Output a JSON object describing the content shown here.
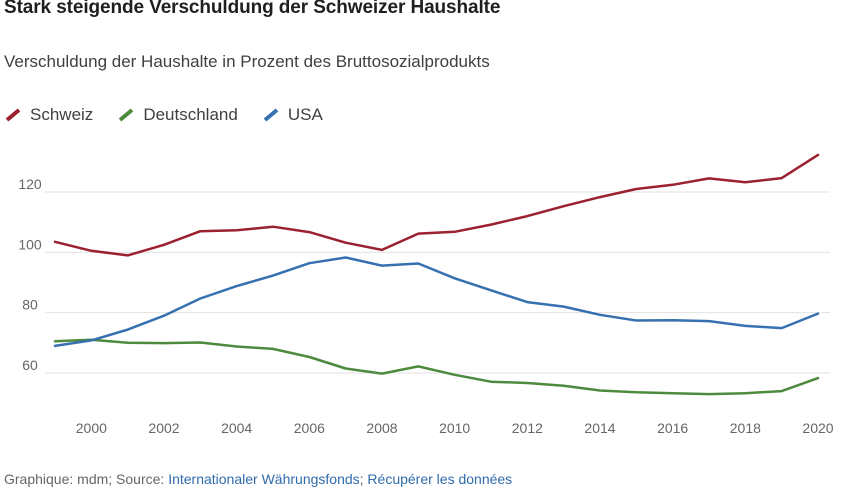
{
  "title": "Stark steigende Verschuldung der Schweizer Haushalte",
  "subtitle": "Verschuldung der Haushalte in Prozent des Bruttosozialprodukts",
  "footer": {
    "prefix": "Graphique: mdm; Source: ",
    "source_link": "Internationaler Währungsfonds",
    "separator": "; ",
    "download_link": "Récupérer les données"
  },
  "chart_data": {
    "type": "line",
    "title": "Stark steigende Verschuldung der Schweizer Haushalte",
    "subtitle": "Verschuldung der Haushalte in Prozent des Bruttosozialprodukts",
    "xlabel": "",
    "ylabel": "",
    "x": [
      1999,
      2000,
      2001,
      2002,
      2003,
      2004,
      2005,
      2006,
      2007,
      2008,
      2009,
      2010,
      2011,
      2012,
      2013,
      2014,
      2015,
      2016,
      2017,
      2018,
      2019,
      2020
    ],
    "xticks": [
      "2000",
      "2002",
      "2004",
      "2006",
      "2008",
      "2010",
      "2012",
      "2014",
      "2016",
      "2018",
      "2020"
    ],
    "xtick_values": [
      2000,
      2002,
      2004,
      2006,
      2008,
      2010,
      2012,
      2014,
      2016,
      2018,
      2020
    ],
    "yticks": [
      "60",
      "80",
      "100",
      "120"
    ],
    "ytick_values": [
      60,
      80,
      100,
      120
    ],
    "xlim": [
      1999,
      2020
    ],
    "ylim": [
      50,
      135
    ],
    "grid": true,
    "legend_position": "top-left",
    "series": [
      {
        "name": "Schweiz",
        "color": "#9b2030",
        "values": [
          103.5,
          100.5,
          99,
          102.5,
          107,
          107.3,
          108.5,
          106.7,
          103.2,
          100.8,
          106.2,
          106.8,
          109.2,
          112,
          115.3,
          118.3,
          121,
          122.4,
          124.5,
          123.2,
          124.6,
          132.3
        ]
      },
      {
        "name": "Deutschland",
        "color": "#4d8a3d",
        "values": [
          70.5,
          71,
          70,
          69.9,
          70.1,
          68.8,
          68,
          65.3,
          61.5,
          59.8,
          62.2,
          59.4,
          57.1,
          56.7,
          55.8,
          54.2,
          53.6,
          53.3,
          53,
          53.3,
          54,
          58.3
        ]
      },
      {
        "name": "USA",
        "color": "#3770b0",
        "values": [
          69,
          70.8,
          74.4,
          79,
          84.7,
          88.8,
          92.3,
          96.4,
          98.3,
          95.6,
          96.3,
          91.4,
          87.4,
          83.5,
          82,
          79.3,
          77.4,
          77.5,
          77.2,
          75.6,
          74.9,
          79.7
        ]
      }
    ]
  }
}
